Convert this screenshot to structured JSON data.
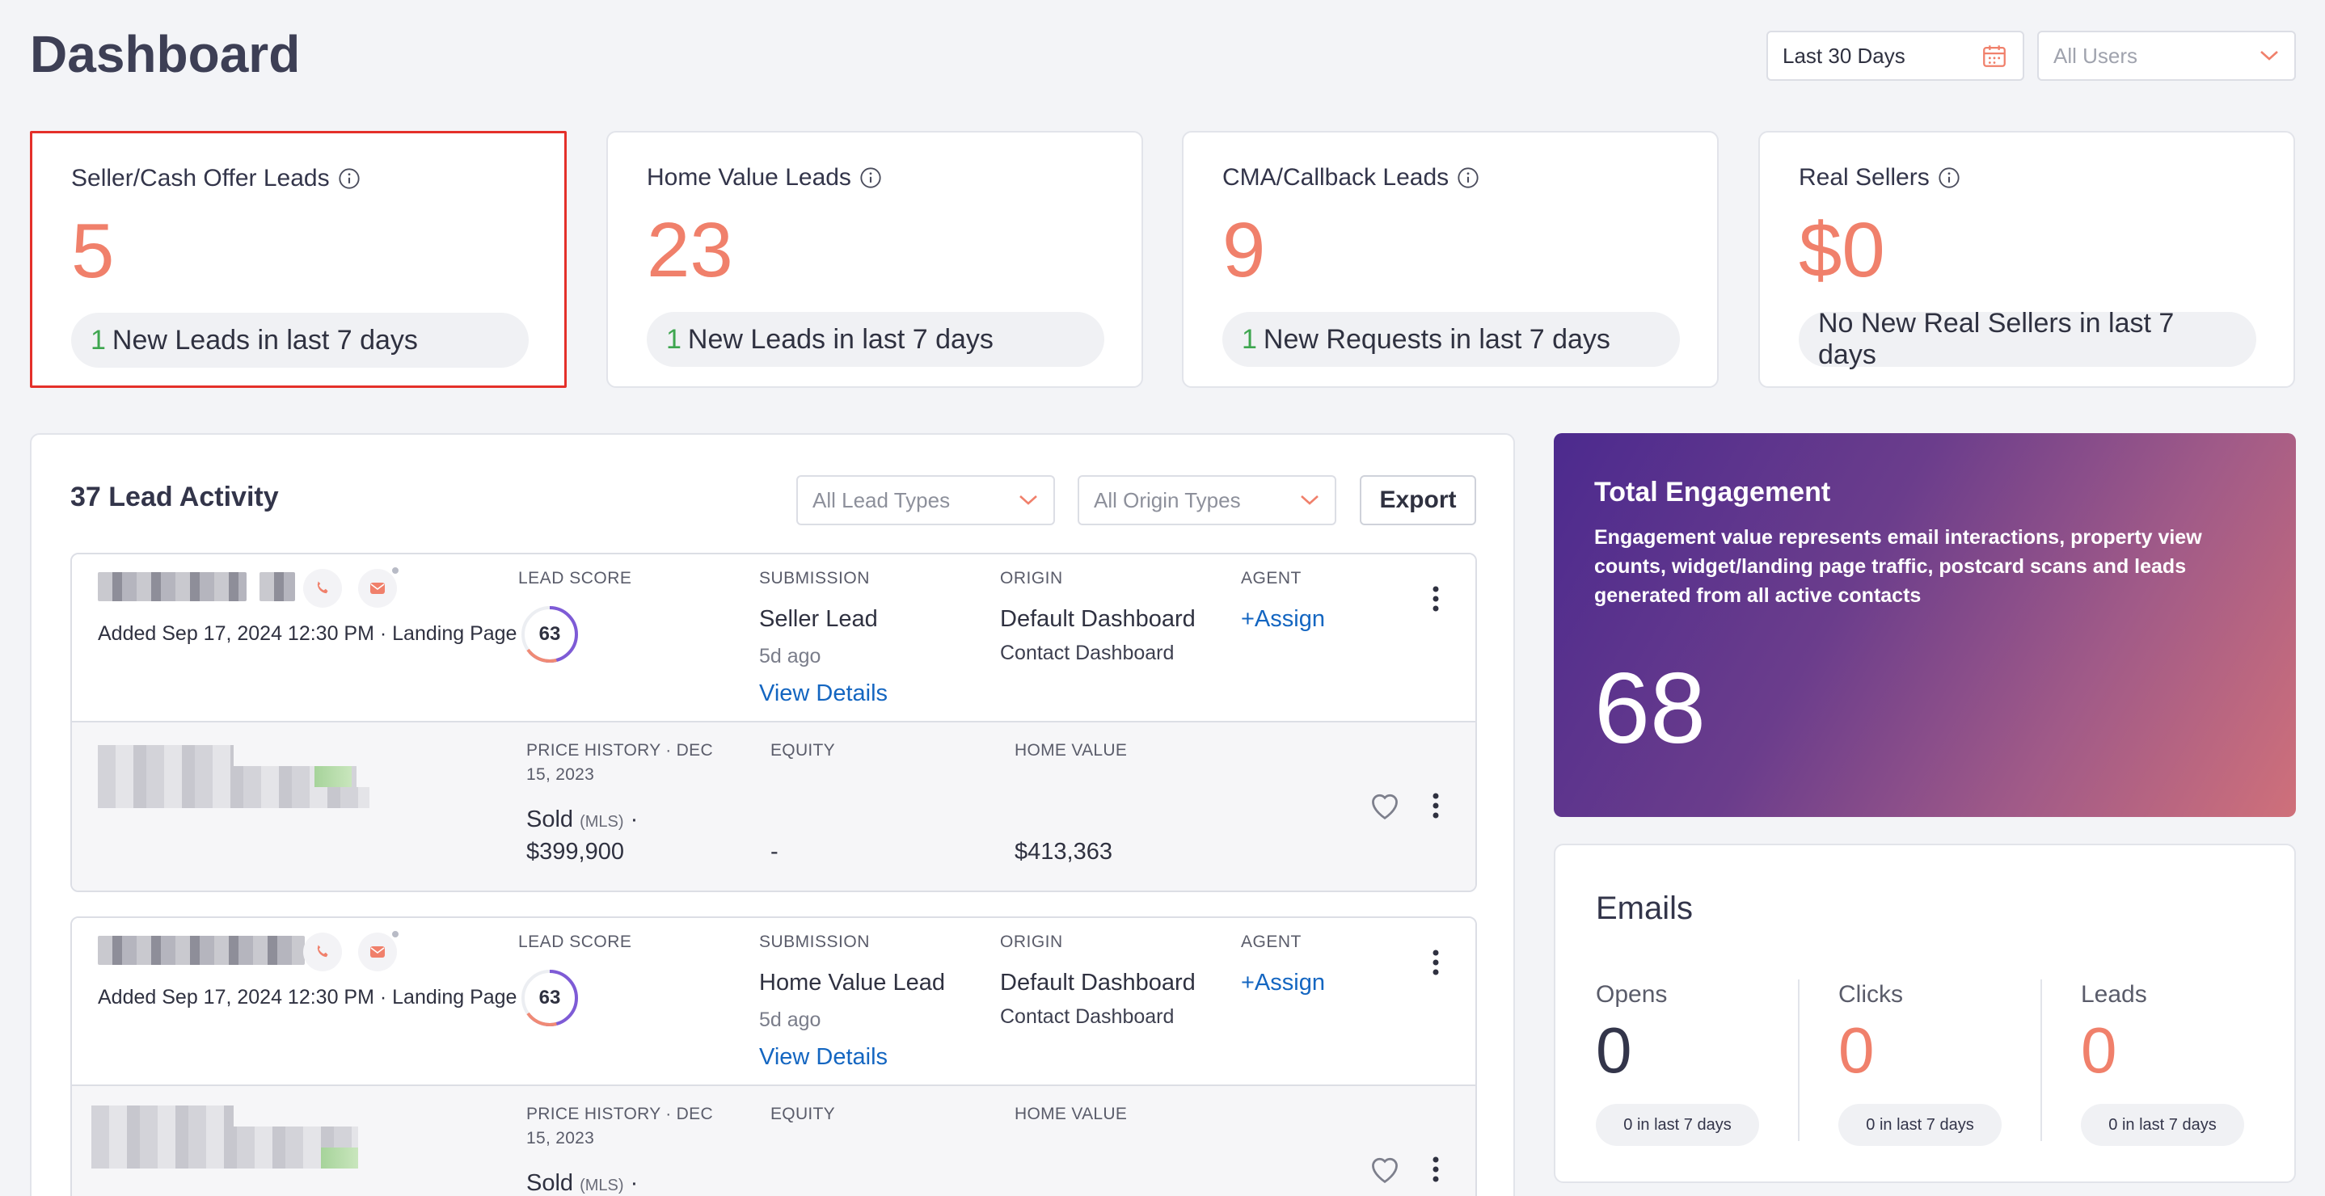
{
  "header": {
    "title": "Dashboard",
    "date_filter": "Last 30 Days",
    "users_filter": "All Users"
  },
  "stats": [
    {
      "label": "Seller/Cash Offer Leads",
      "value": "5",
      "new_count": "1",
      "new_text": "New Leads in last 7 days"
    },
    {
      "label": "Home Value Leads",
      "value": "23",
      "new_count": "1",
      "new_text": "New Leads in last 7 days"
    },
    {
      "label": "CMA/Callback Leads",
      "value": "9",
      "new_count": "1",
      "new_text": "New Requests in last 7 days"
    },
    {
      "label": "Real Sellers",
      "value": "$0",
      "new_count": "",
      "new_text": "No New Real Sellers in last 7 days"
    }
  ],
  "activity": {
    "title": "37 Lead Activity",
    "lead_types": "All Lead Types",
    "origin_types": "All Origin Types",
    "export_label": "Export",
    "col_lead_score": "LEAD SCORE",
    "col_submission": "SUBMISSION",
    "col_origin": "ORIGIN",
    "col_agent": "AGENT",
    "col_price_history": "PRICE HISTORY · DEC 15, 2023",
    "col_equity": "EQUITY",
    "col_home_value": "HOME VALUE",
    "leads": [
      {
        "added": "Added Sep 17, 2024 12:30 PM · Landing Page",
        "score": "63",
        "submission": "Seller Lead",
        "submission_age": "5d ago",
        "view_details": "View Details",
        "origin": "Default Dashboard",
        "origin_sub": "Contact Dashboard",
        "agent": "+Assign",
        "sold": "Sold",
        "sold_source": "(MLS)",
        "sold_sep": "·",
        "sold_price": "$399,900",
        "equity": "-",
        "home_value": "$413,363"
      },
      {
        "added": "Added Sep 17, 2024 12:30 PM · Landing Page",
        "score": "63",
        "submission": "Home Value Lead",
        "submission_age": "5d ago",
        "view_details": "View Details",
        "origin": "Default Dashboard",
        "origin_sub": "Contact Dashboard",
        "agent": "+Assign",
        "sold": "Sold",
        "sold_source": "(MLS)",
        "sold_sep": "·"
      }
    ]
  },
  "engagement": {
    "title": "Total Engagement",
    "description": "Engagement value represents email interactions, property view counts, widget/landing page traffic, postcard scans and leads generated from all active contacts",
    "value": "68"
  },
  "emails": {
    "title": "Emails",
    "columns": [
      {
        "label": "Opens",
        "value": "0",
        "sub": "0 in last 7 days"
      },
      {
        "label": "Clicks",
        "value": "0",
        "sub": "0 in last 7 days"
      },
      {
        "label": "Leads",
        "value": "0",
        "sub": "0 in last 7 days"
      }
    ]
  },
  "colors": {
    "accent": "#f0806b",
    "positive": "#3ea64f",
    "link": "#1466c1",
    "selected_border": "#e4302a"
  }
}
